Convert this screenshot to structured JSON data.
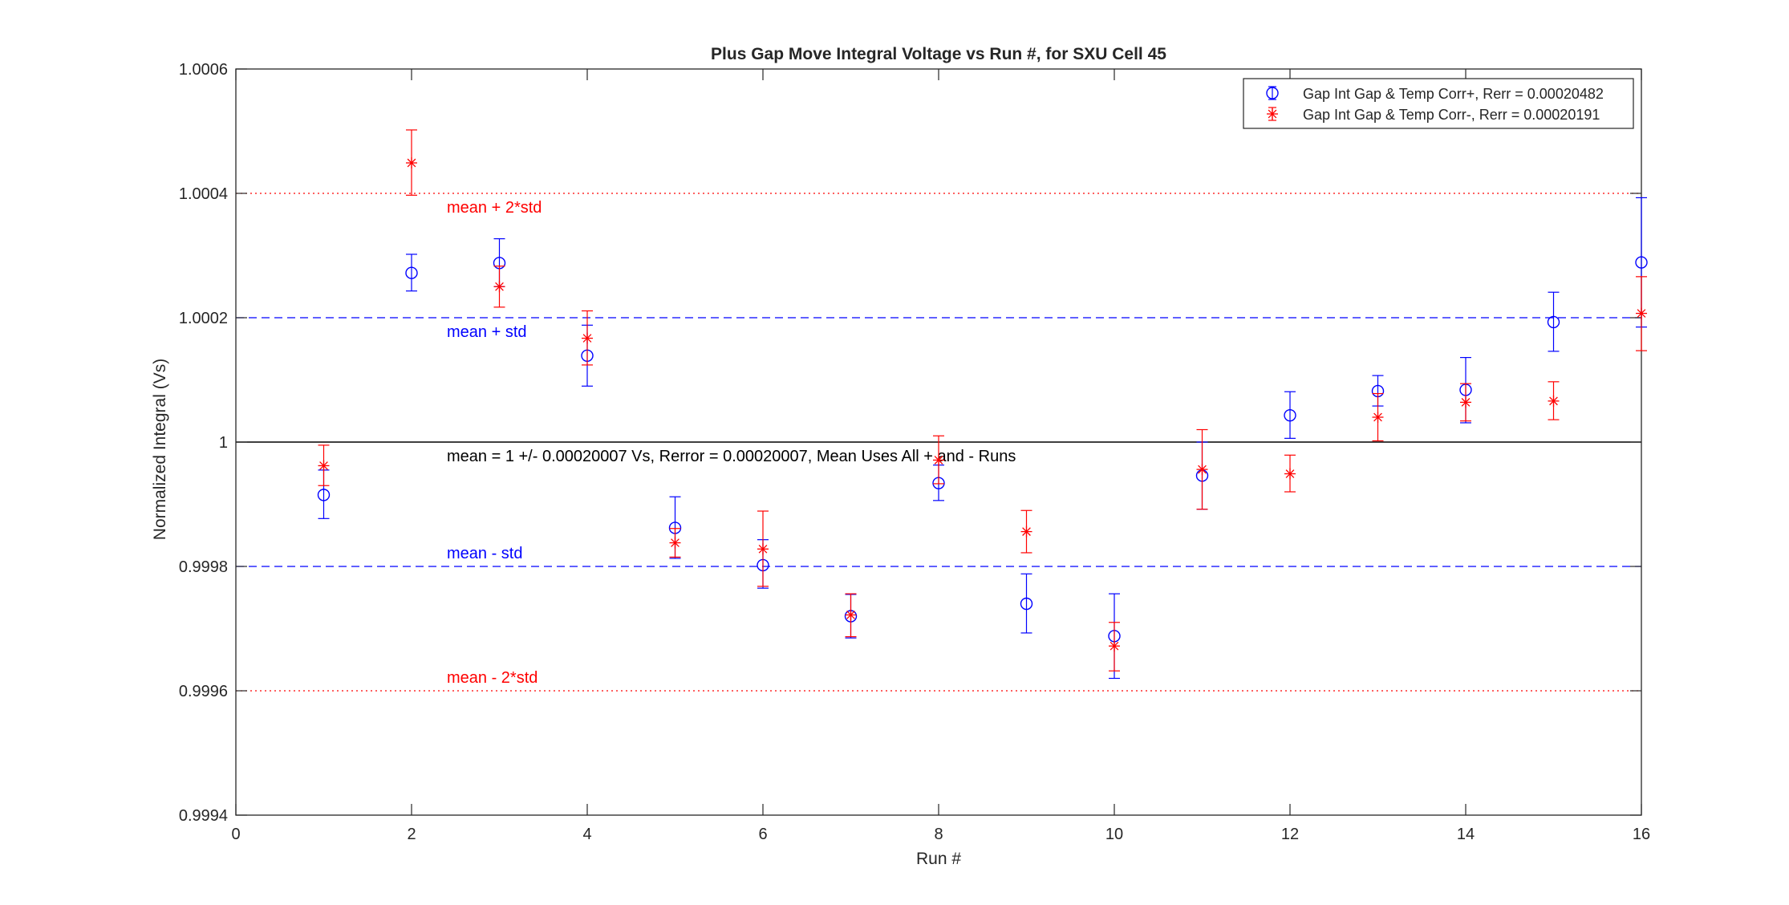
{
  "chart_data": {
    "type": "scatter",
    "title": "Plus Gap Move Integral Voltage vs Run #, for SXU Cell 45",
    "xlabel": "Run #",
    "ylabel": "Normalized Integral (Vs)",
    "xlim": [
      0,
      16
    ],
    "ylim": [
      0.9994,
      1.0006
    ],
    "x_ticks": [
      0,
      2,
      4,
      6,
      8,
      10,
      12,
      14,
      16
    ],
    "x_tick_labels": [
      "0",
      "2",
      "4",
      "6",
      "8",
      "10",
      "12",
      "14",
      "16"
    ],
    "y_ticks": [
      0.9994,
      0.9996,
      0.9998,
      1.0,
      1.0002,
      1.0004,
      1.0006
    ],
    "y_tick_labels": [
      "0.9994",
      "0.9996",
      "0.9998",
      "1",
      "1.0002",
      "1.0004",
      "1.0006"
    ],
    "grid": false,
    "legend_position": "top-right",
    "series": [
      {
        "name": "Gap Int Gap & Temp Corr+, Rerr = 0.00020482",
        "marker": "circle",
        "color": "#0000ff",
        "points": [
          {
            "x": 1,
            "y": 0.999915,
            "lo": 0.999877,
            "hi": 0.999955
          },
          {
            "x": 2,
            "y": 1.000272,
            "lo": 1.000243,
            "hi": 1.000302
          },
          {
            "x": 3,
            "y": 1.000288,
            "lo": 1.00025,
            "hi": 1.000327
          },
          {
            "x": 4,
            "y": 1.000139,
            "lo": 1.00009,
            "hi": 1.000188
          },
          {
            "x": 5,
            "y": 0.999862,
            "lo": 0.999813,
            "hi": 0.999912
          },
          {
            "x": 6,
            "y": 0.999802,
            "lo": 0.999765,
            "hi": 0.999843
          },
          {
            "x": 7,
            "y": 0.99972,
            "lo": 0.999685,
            "hi": 0.999755
          },
          {
            "x": 8,
            "y": 0.999934,
            "lo": 0.999906,
            "hi": 0.999963
          },
          {
            "x": 9,
            "y": 0.99974,
            "lo": 0.999693,
            "hi": 0.999788
          },
          {
            "x": 10,
            "y": 0.999688,
            "lo": 0.99962,
            "hi": 0.999756
          },
          {
            "x": 11,
            "y": 0.999946,
            "lo": 0.999892,
            "hi": 1.0
          },
          {
            "x": 12,
            "y": 1.000043,
            "lo": 1.000006,
            "hi": 1.000081
          },
          {
            "x": 13,
            "y": 1.000082,
            "lo": 1.000058,
            "hi": 1.000107
          },
          {
            "x": 14,
            "y": 1.000084,
            "lo": 1.000031,
            "hi": 1.000136
          },
          {
            "x": 15,
            "y": 1.000193,
            "lo": 1.000146,
            "hi": 1.000241
          },
          {
            "x": 16,
            "y": 1.000289,
            "lo": 1.000185,
            "hi": 1.000393
          }
        ]
      },
      {
        "name": "Gap Int Gap & Temp  Corr-, Rerr = 0.00020191",
        "marker": "asterisk",
        "color": "#ff0000",
        "points": [
          {
            "x": 1,
            "y": 0.999962,
            "lo": 0.99993,
            "hi": 0.999995
          },
          {
            "x": 2,
            "y": 1.000449,
            "lo": 1.000397,
            "hi": 1.000502
          },
          {
            "x": 3,
            "y": 1.00025,
            "lo": 1.000217,
            "hi": 1.000283
          },
          {
            "x": 4,
            "y": 1.000167,
            "lo": 1.000124,
            "hi": 1.000211
          },
          {
            "x": 5,
            "y": 0.999838,
            "lo": 0.999815,
            "hi": 0.999861
          },
          {
            "x": 6,
            "y": 0.999828,
            "lo": 0.999768,
            "hi": 0.999889
          },
          {
            "x": 7,
            "y": 0.999722,
            "lo": 0.999687,
            "hi": 0.999756
          },
          {
            "x": 8,
            "y": 0.999971,
            "lo": 0.999933,
            "hi": 1.00001
          },
          {
            "x": 9,
            "y": 0.999856,
            "lo": 0.999822,
            "hi": 0.99989
          },
          {
            "x": 10,
            "y": 0.999672,
            "lo": 0.999632,
            "hi": 0.99971
          },
          {
            "x": 11,
            "y": 0.999956,
            "lo": 0.999892,
            "hi": 1.00002
          },
          {
            "x": 12,
            "y": 0.999949,
            "lo": 0.99992,
            "hi": 0.999979
          },
          {
            "x": 13,
            "y": 1.00004,
            "lo": 1.000002,
            "hi": 1.000078
          },
          {
            "x": 14,
            "y": 1.000064,
            "lo": 1.000034,
            "hi": 1.000094
          },
          {
            "x": 15,
            "y": 1.000066,
            "lo": 1.000036,
            "hi": 1.000097
          },
          {
            "x": 16,
            "y": 1.000207,
            "lo": 1.000147,
            "hi": 1.000266
          }
        ]
      }
    ],
    "reference_lines": [
      {
        "y": 1.0004,
        "style": "dotted",
        "color": "#ff0000",
        "label": "mean + 2*std"
      },
      {
        "y": 1.0002,
        "style": "dashed",
        "color": "#0000ff",
        "label": "mean + std"
      },
      {
        "y": 1.0,
        "style": "solid",
        "color": "#000000",
        "label": "mean = 1 +/- 0.00020007 Vs, Rerror = 0.00020007, Mean Uses All + and - Runs"
      },
      {
        "y": 0.9998,
        "style": "dashed",
        "color": "#0000ff",
        "label": "mean - std"
      },
      {
        "y": 0.9996,
        "style": "dotted",
        "color": "#ff0000",
        "label": "mean - 2*std"
      }
    ]
  }
}
